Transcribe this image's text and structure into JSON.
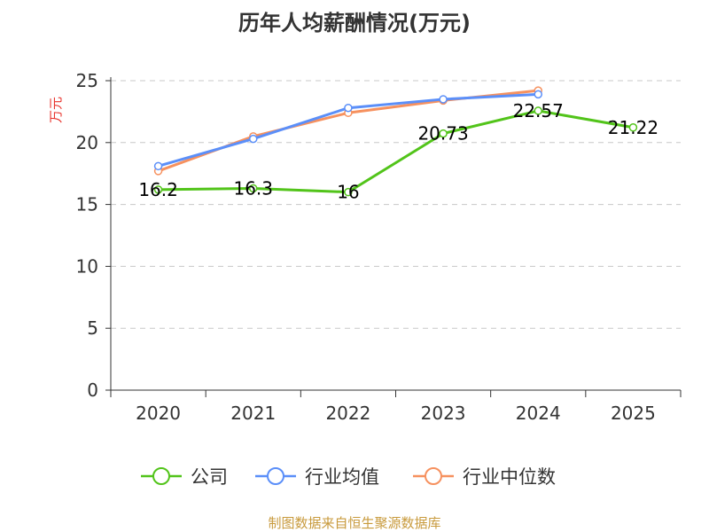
{
  "colors": {
    "company": "#52c41a",
    "industry_avg": "#5b8ff9",
    "industry_median": "#f6915f",
    "ylabel": "#e8352e",
    "source": "#c89a3c",
    "grid": "#c8c8c8",
    "axis": "#333333"
  },
  "footer": {
    "source": "制图数据来自恒生聚源数据库"
  },
  "chart_data": {
    "type": "line",
    "title": "历年人均薪酬情况(万元)",
    "ylabel": "万元",
    "xlabel": "",
    "ylim": [
      0,
      25
    ],
    "yticks": [
      0,
      5,
      10,
      15,
      20,
      25
    ],
    "categories": [
      "2020",
      "2021",
      "2022",
      "2023",
      "2024",
      "2025"
    ],
    "grid": true,
    "legend_position": "bottom",
    "series": [
      {
        "name": "公司",
        "color_key": "company",
        "values": [
          16.2,
          16.3,
          16,
          20.73,
          22.57,
          21.22
        ],
        "labels": [
          "16.2",
          "16.3",
          "16",
          "20.73",
          "22.57",
          "21.22"
        ],
        "show_labels": true
      },
      {
        "name": "行业均值",
        "color_key": "industry_avg",
        "values": [
          18.1,
          20.3,
          22.8,
          23.5,
          23.9,
          null
        ],
        "show_labels": false
      },
      {
        "name": "行业中位数",
        "color_key": "industry_median",
        "values": [
          17.7,
          20.5,
          22.4,
          23.4,
          24.2,
          null
        ],
        "show_labels": false
      }
    ]
  }
}
